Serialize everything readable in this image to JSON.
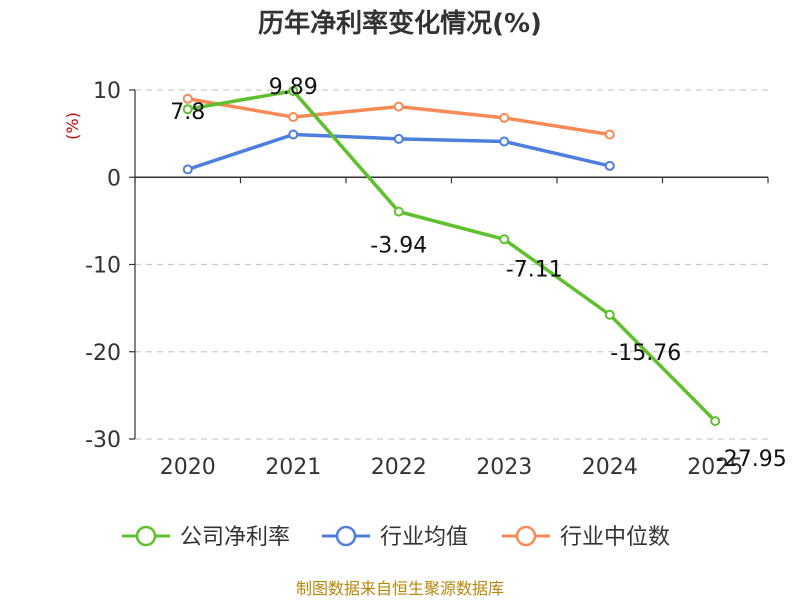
{
  "chart_data": {
    "type": "line",
    "title": "历年净利率变化情况(%)",
    "ylabel": "(%)",
    "xlabel": "",
    "categories": [
      "2020",
      "2021",
      "2022",
      "2023",
      "2024",
      "2025"
    ],
    "ylim": [
      -30,
      10
    ],
    "yticks": [
      10,
      0,
      -10,
      -20,
      -30
    ],
    "grid": true,
    "series": [
      {
        "name": "公司净利率",
        "color": "#5ec02c",
        "values": [
          7.8,
          9.89,
          -3.94,
          -7.11,
          -15.76,
          -27.95
        ],
        "labels": [
          "7.8",
          "9.89",
          "-3.94",
          "-7.11",
          "-15.76",
          "-27.95"
        ]
      },
      {
        "name": "行业均值",
        "color": "#4e7fdc",
        "values": [
          0.9,
          4.9,
          4.4,
          4.1,
          1.3,
          null
        ]
      },
      {
        "name": "行业中位数",
        "color": "#f78a55",
        "values": [
          9.0,
          6.9,
          8.1,
          6.8,
          4.9,
          null
        ]
      }
    ],
    "legend_position": "bottom",
    "source": "制图数据来自恒生聚源数据库"
  }
}
